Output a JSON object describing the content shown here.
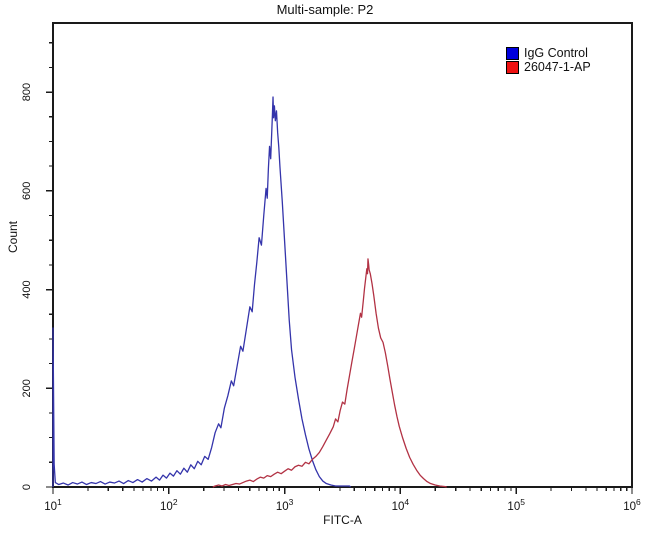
{
  "title": "Multi-sample: P2",
  "legend": {
    "items": [
      {
        "label": "IgG Control",
        "color": "#0000dd"
      },
      {
        "label": "26047-1-AP",
        "color": "#ee1111"
      }
    ]
  },
  "axes": {
    "x_label": "FITC-A",
    "y_label": "Count",
    "x_tick_base": "10",
    "x_tick_exponents": [
      1,
      2,
      3,
      4,
      5,
      6
    ],
    "y_tick_labels": [
      "0",
      "200",
      "400",
      "600",
      "800"
    ]
  },
  "chart_data": {
    "type": "line",
    "title": "Multi-sample: P2",
    "xlabel": "FITC-A",
    "ylabel": "Count",
    "x_scale": "log10",
    "xlim": [
      10,
      1000000
    ],
    "ylim": [
      0,
      940
    ],
    "x_major_ticks": [
      10,
      100,
      1000,
      10000,
      100000,
      1000000
    ],
    "y_major_ticks": [
      0,
      200,
      400,
      600,
      800
    ],
    "y_minor_step": 50,
    "grid": false,
    "legend_position": "top-right-inside",
    "points_format": "[log10(FITC-A), count]",
    "series": [
      {
        "name": "IgG Control",
        "color": "#3434ab",
        "peak": {
          "x": 800,
          "count": 790
        },
        "edge_spike_count": 322,
        "points": [
          [
            1.0,
            0
          ],
          [
            1.0,
            322
          ],
          [
            1.01,
            46
          ],
          [
            1.02,
            9
          ],
          [
            1.05,
            5
          ],
          [
            1.09,
            8
          ],
          [
            1.13,
            4
          ],
          [
            1.17,
            9
          ],
          [
            1.21,
            6
          ],
          [
            1.25,
            10
          ],
          [
            1.29,
            5
          ],
          [
            1.33,
            9
          ],
          [
            1.37,
            7
          ],
          [
            1.41,
            11
          ],
          [
            1.45,
            6
          ],
          [
            1.49,
            10
          ],
          [
            1.53,
            8
          ],
          [
            1.57,
            12
          ],
          [
            1.61,
            7
          ],
          [
            1.65,
            13
          ],
          [
            1.69,
            9
          ],
          [
            1.73,
            15
          ],
          [
            1.77,
            10
          ],
          [
            1.81,
            17
          ],
          [
            1.85,
            12
          ],
          [
            1.89,
            20
          ],
          [
            1.92,
            14
          ],
          [
            1.95,
            24
          ],
          [
            1.98,
            18
          ],
          [
            2.01,
            28
          ],
          [
            2.04,
            22
          ],
          [
            2.07,
            33
          ],
          [
            2.1,
            26
          ],
          [
            2.13,
            38
          ],
          [
            2.16,
            30
          ],
          [
            2.19,
            45
          ],
          [
            2.22,
            37
          ],
          [
            2.25,
            52
          ],
          [
            2.28,
            45
          ],
          [
            2.31,
            62
          ],
          [
            2.34,
            56
          ],
          [
            2.37,
            80
          ],
          [
            2.4,
            110
          ],
          [
            2.43,
            128
          ],
          [
            2.45,
            120
          ],
          [
            2.48,
            160
          ],
          [
            2.51,
            185
          ],
          [
            2.54,
            215
          ],
          [
            2.56,
            205
          ],
          [
            2.59,
            245
          ],
          [
            2.62,
            285
          ],
          [
            2.64,
            275
          ],
          [
            2.67,
            320
          ],
          [
            2.7,
            365
          ],
          [
            2.72,
            355
          ],
          [
            2.74,
            410
          ],
          [
            2.76,
            455
          ],
          [
            2.78,
            505
          ],
          [
            2.8,
            490
          ],
          [
            2.82,
            550
          ],
          [
            2.84,
            605
          ],
          [
            2.85,
            585
          ],
          [
            2.86,
            645
          ],
          [
            2.87,
            690
          ],
          [
            2.88,
            665
          ],
          [
            2.89,
            725
          ],
          [
            2.895,
            755
          ],
          [
            2.9,
            790
          ],
          [
            2.905,
            748
          ],
          [
            2.912,
            772
          ],
          [
            2.92,
            742
          ],
          [
            2.93,
            762
          ],
          [
            2.94,
            718
          ],
          [
            2.95,
            688
          ],
          [
            2.96,
            648
          ],
          [
            2.98,
            578
          ],
          [
            3.0,
            498
          ],
          [
            3.02,
            418
          ],
          [
            3.04,
            338
          ],
          [
            3.06,
            278
          ],
          [
            3.09,
            222
          ],
          [
            3.12,
            178
          ],
          [
            3.15,
            138
          ],
          [
            3.18,
            106
          ],
          [
            3.21,
            77
          ],
          [
            3.24,
            54
          ],
          [
            3.27,
            35
          ],
          [
            3.3,
            21
          ],
          [
            3.33,
            12
          ],
          [
            3.36,
            7
          ],
          [
            3.4,
            4
          ],
          [
            3.44,
            2
          ],
          [
            3.5,
            2
          ],
          [
            3.56,
            2
          ],
          [
            3.57,
            0
          ]
        ]
      },
      {
        "name": "26047-1-AP",
        "color": "#b23244",
        "peak": {
          "x": 5200,
          "count": 462
        },
        "points": [
          [
            2.38,
            0
          ],
          [
            2.4,
            2
          ],
          [
            2.43,
            4
          ],
          [
            2.46,
            2
          ],
          [
            2.49,
            5
          ],
          [
            2.52,
            3
          ],
          [
            2.55,
            5
          ],
          [
            2.58,
            7
          ],
          [
            2.61,
            6
          ],
          [
            2.64,
            9
          ],
          [
            2.67,
            12
          ],
          [
            2.7,
            14
          ],
          [
            2.73,
            11
          ],
          [
            2.76,
            16
          ],
          [
            2.79,
            20
          ],
          [
            2.82,
            18
          ],
          [
            2.85,
            23
          ],
          [
            2.88,
            21
          ],
          [
            2.91,
            26
          ],
          [
            2.94,
            30
          ],
          [
            2.97,
            27
          ],
          [
            3.0,
            32
          ],
          [
            3.03,
            37
          ],
          [
            3.06,
            34
          ],
          [
            3.09,
            41
          ],
          [
            3.12,
            44
          ],
          [
            3.15,
            42
          ],
          [
            3.18,
            50
          ],
          [
            3.21,
            47
          ],
          [
            3.24,
            56
          ],
          [
            3.27,
            62
          ],
          [
            3.3,
            70
          ],
          [
            3.33,
            82
          ],
          [
            3.36,
            95
          ],
          [
            3.39,
            108
          ],
          [
            3.42,
            122
          ],
          [
            3.44,
            138
          ],
          [
            3.46,
            132
          ],
          [
            3.48,
            155
          ],
          [
            3.5,
            172
          ],
          [
            3.52,
            168
          ],
          [
            3.54,
            198
          ],
          [
            3.56,
            225
          ],
          [
            3.58,
            252
          ],
          [
            3.6,
            278
          ],
          [
            3.62,
            305
          ],
          [
            3.64,
            332
          ],
          [
            3.655,
            352
          ],
          [
            3.665,
            344
          ],
          [
            3.68,
            378
          ],
          [
            3.69,
            402
          ],
          [
            3.7,
            422
          ],
          [
            3.71,
            442
          ],
          [
            3.716,
            432
          ],
          [
            3.72,
            462
          ],
          [
            3.726,
            450
          ],
          [
            3.73,
            440
          ],
          [
            3.74,
            432
          ],
          [
            3.755,
            412
          ],
          [
            3.77,
            388
          ],
          [
            3.79,
            352
          ],
          [
            3.81,
            322
          ],
          [
            3.83,
            302
          ],
          [
            3.85,
            293
          ],
          [
            3.87,
            272
          ],
          [
            3.89,
            246
          ],
          [
            3.91,
            218
          ],
          [
            3.93,
            192
          ],
          [
            3.95,
            166
          ],
          [
            3.97,
            143
          ],
          [
            3.99,
            123
          ],
          [
            4.02,
            99
          ],
          [
            4.05,
            78
          ],
          [
            4.08,
            60
          ],
          [
            4.11,
            46
          ],
          [
            4.14,
            34
          ],
          [
            4.17,
            24
          ],
          [
            4.2,
            17
          ],
          [
            4.23,
            11
          ],
          [
            4.26,
            7
          ],
          [
            4.3,
            4
          ],
          [
            4.34,
            2
          ],
          [
            4.38,
            1
          ],
          [
            4.4,
            0
          ]
        ]
      }
    ]
  }
}
